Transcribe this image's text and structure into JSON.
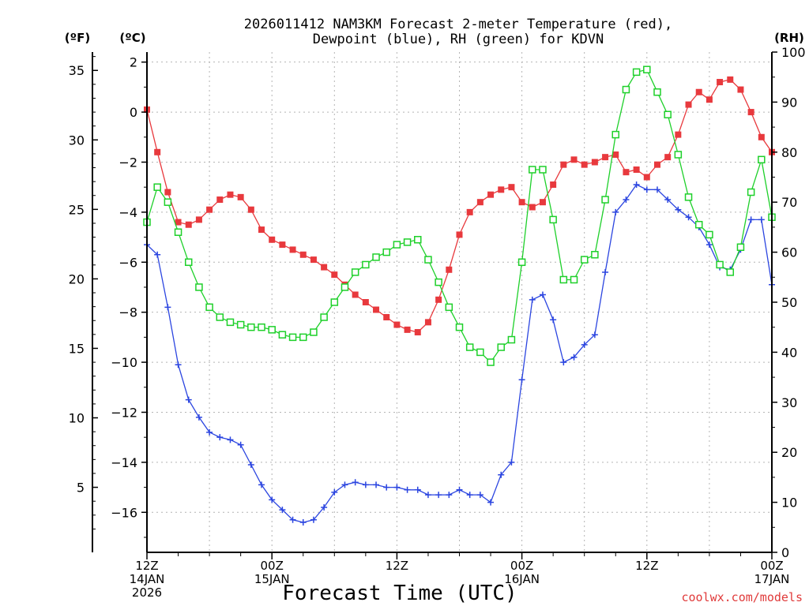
{
  "chart_data": {
    "type": "line",
    "title_line1": "2026011412 NAM3KM Forecast 2-meter Temperature (red),",
    "title_line2": "Dewpoint (blue), RH (green) for KDVN",
    "xlabel": "Forecast Time (UTC)",
    "credit": "coolwx.com/models",
    "units": {
      "fahrenheit": "(ºF)",
      "celsius": "(ºC)",
      "rh": "(RH)"
    },
    "x_range_hours": [
      0,
      60
    ],
    "c_range": [
      -17.6,
      2.4
    ],
    "f_range": [
      0.32,
      36.32
    ],
    "rh_range": [
      0,
      100
    ],
    "c_ticks": [
      2,
      0,
      -2,
      -4,
      -6,
      -8,
      -10,
      -12,
      -14,
      -16
    ],
    "c_tick_labels": [
      "2",
      "0",
      "−2",
      "−4",
      "−6",
      "−8",
      "−10",
      "−12",
      "−14",
      "−16"
    ],
    "f_ticks": [
      35,
      30,
      25,
      20,
      15,
      10,
      5
    ],
    "f_tick_labels": [
      "35",
      "30",
      "25",
      "20",
      "15",
      "10",
      "5"
    ],
    "rh_ticks": [
      100,
      90,
      80,
      70,
      60,
      50,
      40,
      30,
      20,
      10,
      0
    ],
    "rh_tick_labels": [
      "100",
      "90",
      "80",
      "70",
      "60",
      "50",
      "40",
      "30",
      "20",
      "10",
      "0"
    ],
    "x_ticks": [
      {
        "hour": 0,
        "lines": [
          "12Z",
          "14JAN",
          "2026"
        ]
      },
      {
        "hour": 12,
        "lines": [
          "00Z",
          "15JAN"
        ]
      },
      {
        "hour": 24,
        "lines": [
          "12Z"
        ]
      },
      {
        "hour": 36,
        "lines": [
          "00Z",
          "16JAN"
        ]
      },
      {
        "hour": 48,
        "lines": [
          "12Z"
        ]
      },
      {
        "hour": 60,
        "lines": [
          "00Z",
          "17JAN"
        ]
      }
    ],
    "series": [
      {
        "name": "Temperature",
        "axis": "celsius",
        "color": "#e8393d",
        "marker": "filled-square",
        "values": [
          0.1,
          -1.6,
          -3.2,
          -4.4,
          -4.5,
          -4.3,
          -3.9,
          -3.5,
          -3.3,
          -3.4,
          -3.9,
          -4.7,
          -5.1,
          -5.3,
          -5.5,
          -5.7,
          -5.9,
          -6.2,
          -6.5,
          -6.9,
          -7.3,
          -7.6,
          -7.9,
          -8.2,
          -8.5,
          -8.7,
          -8.8,
          -8.4,
          -7.5,
          -6.3,
          -4.9,
          -4.0,
          -3.6,
          -3.3,
          -3.1,
          -3.0,
          -3.6,
          -3.8,
          -3.6,
          -2.9,
          -2.1,
          -1.9,
          -2.1,
          -2.0,
          -1.8,
          -1.7,
          -2.4,
          -2.3,
          -2.6,
          -2.1,
          -1.8,
          -0.9,
          0.3,
          0.8,
          0.5,
          1.2,
          1.3,
          0.9,
          0.0,
          -1.0,
          -1.6
        ]
      },
      {
        "name": "Dewpoint",
        "axis": "celsius",
        "color": "#2b45e0",
        "marker": "plus",
        "values": [
          -5.3,
          -5.7,
          -7.8,
          -10.1,
          -11.5,
          -12.2,
          -12.8,
          -13.0,
          -13.1,
          -13.3,
          -14.1,
          -14.9,
          -15.5,
          -15.9,
          -16.3,
          -16.4,
          -16.3,
          -15.8,
          -15.2,
          -14.9,
          -14.8,
          -14.9,
          -14.9,
          -15.0,
          -15.0,
          -15.1,
          -15.1,
          -15.3,
          -15.3,
          -15.3,
          -15.1,
          -15.3,
          -15.3,
          -15.6,
          -14.5,
          -14.0,
          -10.7,
          -7.5,
          -7.3,
          -8.3,
          -10.0,
          -9.8,
          -9.3,
          -8.9,
          -6.4,
          -4.0,
          -3.5,
          -2.9,
          -3.1,
          -3.1,
          -3.5,
          -3.9,
          -4.2,
          -4.6,
          -5.3,
          -6.2,
          -6.3,
          -5.5,
          -4.3,
          -4.3,
          -6.9
        ]
      },
      {
        "name": "RH",
        "axis": "rh",
        "color": "#1ed02a",
        "marker": "open-square",
        "values": [
          66,
          73,
          70,
          64,
          58,
          53,
          49,
          47,
          46,
          45.5,
          45,
          45,
          44.5,
          43.5,
          43,
          43,
          44,
          47,
          50,
          53,
          56,
          57.5,
          59,
          60,
          61.5,
          62,
          62.5,
          58.5,
          54,
          49,
          45,
          41,
          40,
          38,
          41,
          42.5,
          58,
          76.5,
          76.5,
          66.5,
          54.5,
          54.5,
          58.5,
          59.5,
          70.5,
          83.5,
          92.5,
          96,
          96.5,
          92,
          87.5,
          79.5,
          71,
          65.5,
          63.5,
          57.5,
          56,
          61,
          72,
          78.5,
          67
        ]
      }
    ]
  }
}
